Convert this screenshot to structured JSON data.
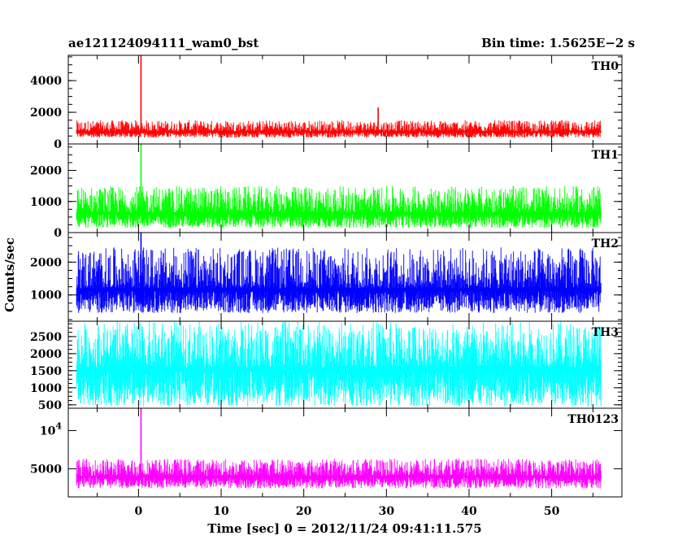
{
  "chart_data": {
    "type": "line",
    "title_left": "ae121124094111_wam0_bst",
    "title_right": "Bin time: 1.5625E−2 s",
    "xlabel": "Time [sec] 0 = 2012/11/24 09:41:11.575",
    "ylabel": "Counts/sec",
    "x_range": [
      -8.5,
      58.5
    ],
    "x_data_range": [
      -7.5,
      56
    ],
    "x_ticks": [
      0,
      10,
      20,
      30,
      40,
      50
    ],
    "x_tick_labels": [
      "0",
      "10",
      "20",
      "30",
      "40",
      "50"
    ],
    "panels": [
      {
        "name": "TH0",
        "color": "#ff0000",
        "y_range": [
          0,
          5600
        ],
        "y_ticks": [
          0,
          2000,
          4000
        ],
        "y_tick_labels": [
          "0",
          "2000",
          "4000"
        ],
        "baseline": 800,
        "noise_low": 400,
        "noise_high": 1500,
        "spikes": [
          {
            "x": 0.3,
            "y": 5600
          },
          {
            "x": 29,
            "y": 2300
          }
        ]
      },
      {
        "name": "TH1",
        "color": "#00ff00",
        "y_range": [
          0,
          2850
        ],
        "y_ticks": [
          0,
          1000,
          2000
        ],
        "y_tick_labels": [
          "0",
          "1000",
          "2000"
        ],
        "baseline": 650,
        "noise_low": 150,
        "noise_high": 1500,
        "spikes": [
          {
            "x": 0.3,
            "y": 2850
          }
        ]
      },
      {
        "name": "TH2",
        "color": "#0000ff",
        "y_range": [
          200,
          2900
        ],
        "y_ticks": [
          1000,
          2000
        ],
        "y_tick_labels": [
          "1000",
          "2000"
        ],
        "baseline": 1200,
        "noise_low": 450,
        "noise_high": 2450,
        "spikes": [
          {
            "x": 0.3,
            "y": 2900
          }
        ]
      },
      {
        "name": "TH3",
        "color": "#00ffff",
        "y_range": [
          400,
          2950
        ],
        "y_ticks": [
          500,
          1000,
          1500,
          2000,
          2500
        ],
        "y_tick_labels": [
          "500",
          "1000",
          "1500",
          "2000",
          "2500"
        ],
        "baseline": 1600,
        "noise_low": 450,
        "noise_high": 2950,
        "spikes": []
      },
      {
        "name": "TH0123",
        "color": "#ff00ff",
        "y_range": [
          3000,
          15000
        ],
        "y_scale": "log",
        "y_ticks": [
          5000,
          10000
        ],
        "y_tick_labels": [
          "5000",
          "10^4"
        ],
        "baseline": 4400,
        "noise_low": 3500,
        "noise_high": 6000,
        "spikes": [
          {
            "x": 0.3,
            "y": 15000
          }
        ]
      }
    ]
  }
}
